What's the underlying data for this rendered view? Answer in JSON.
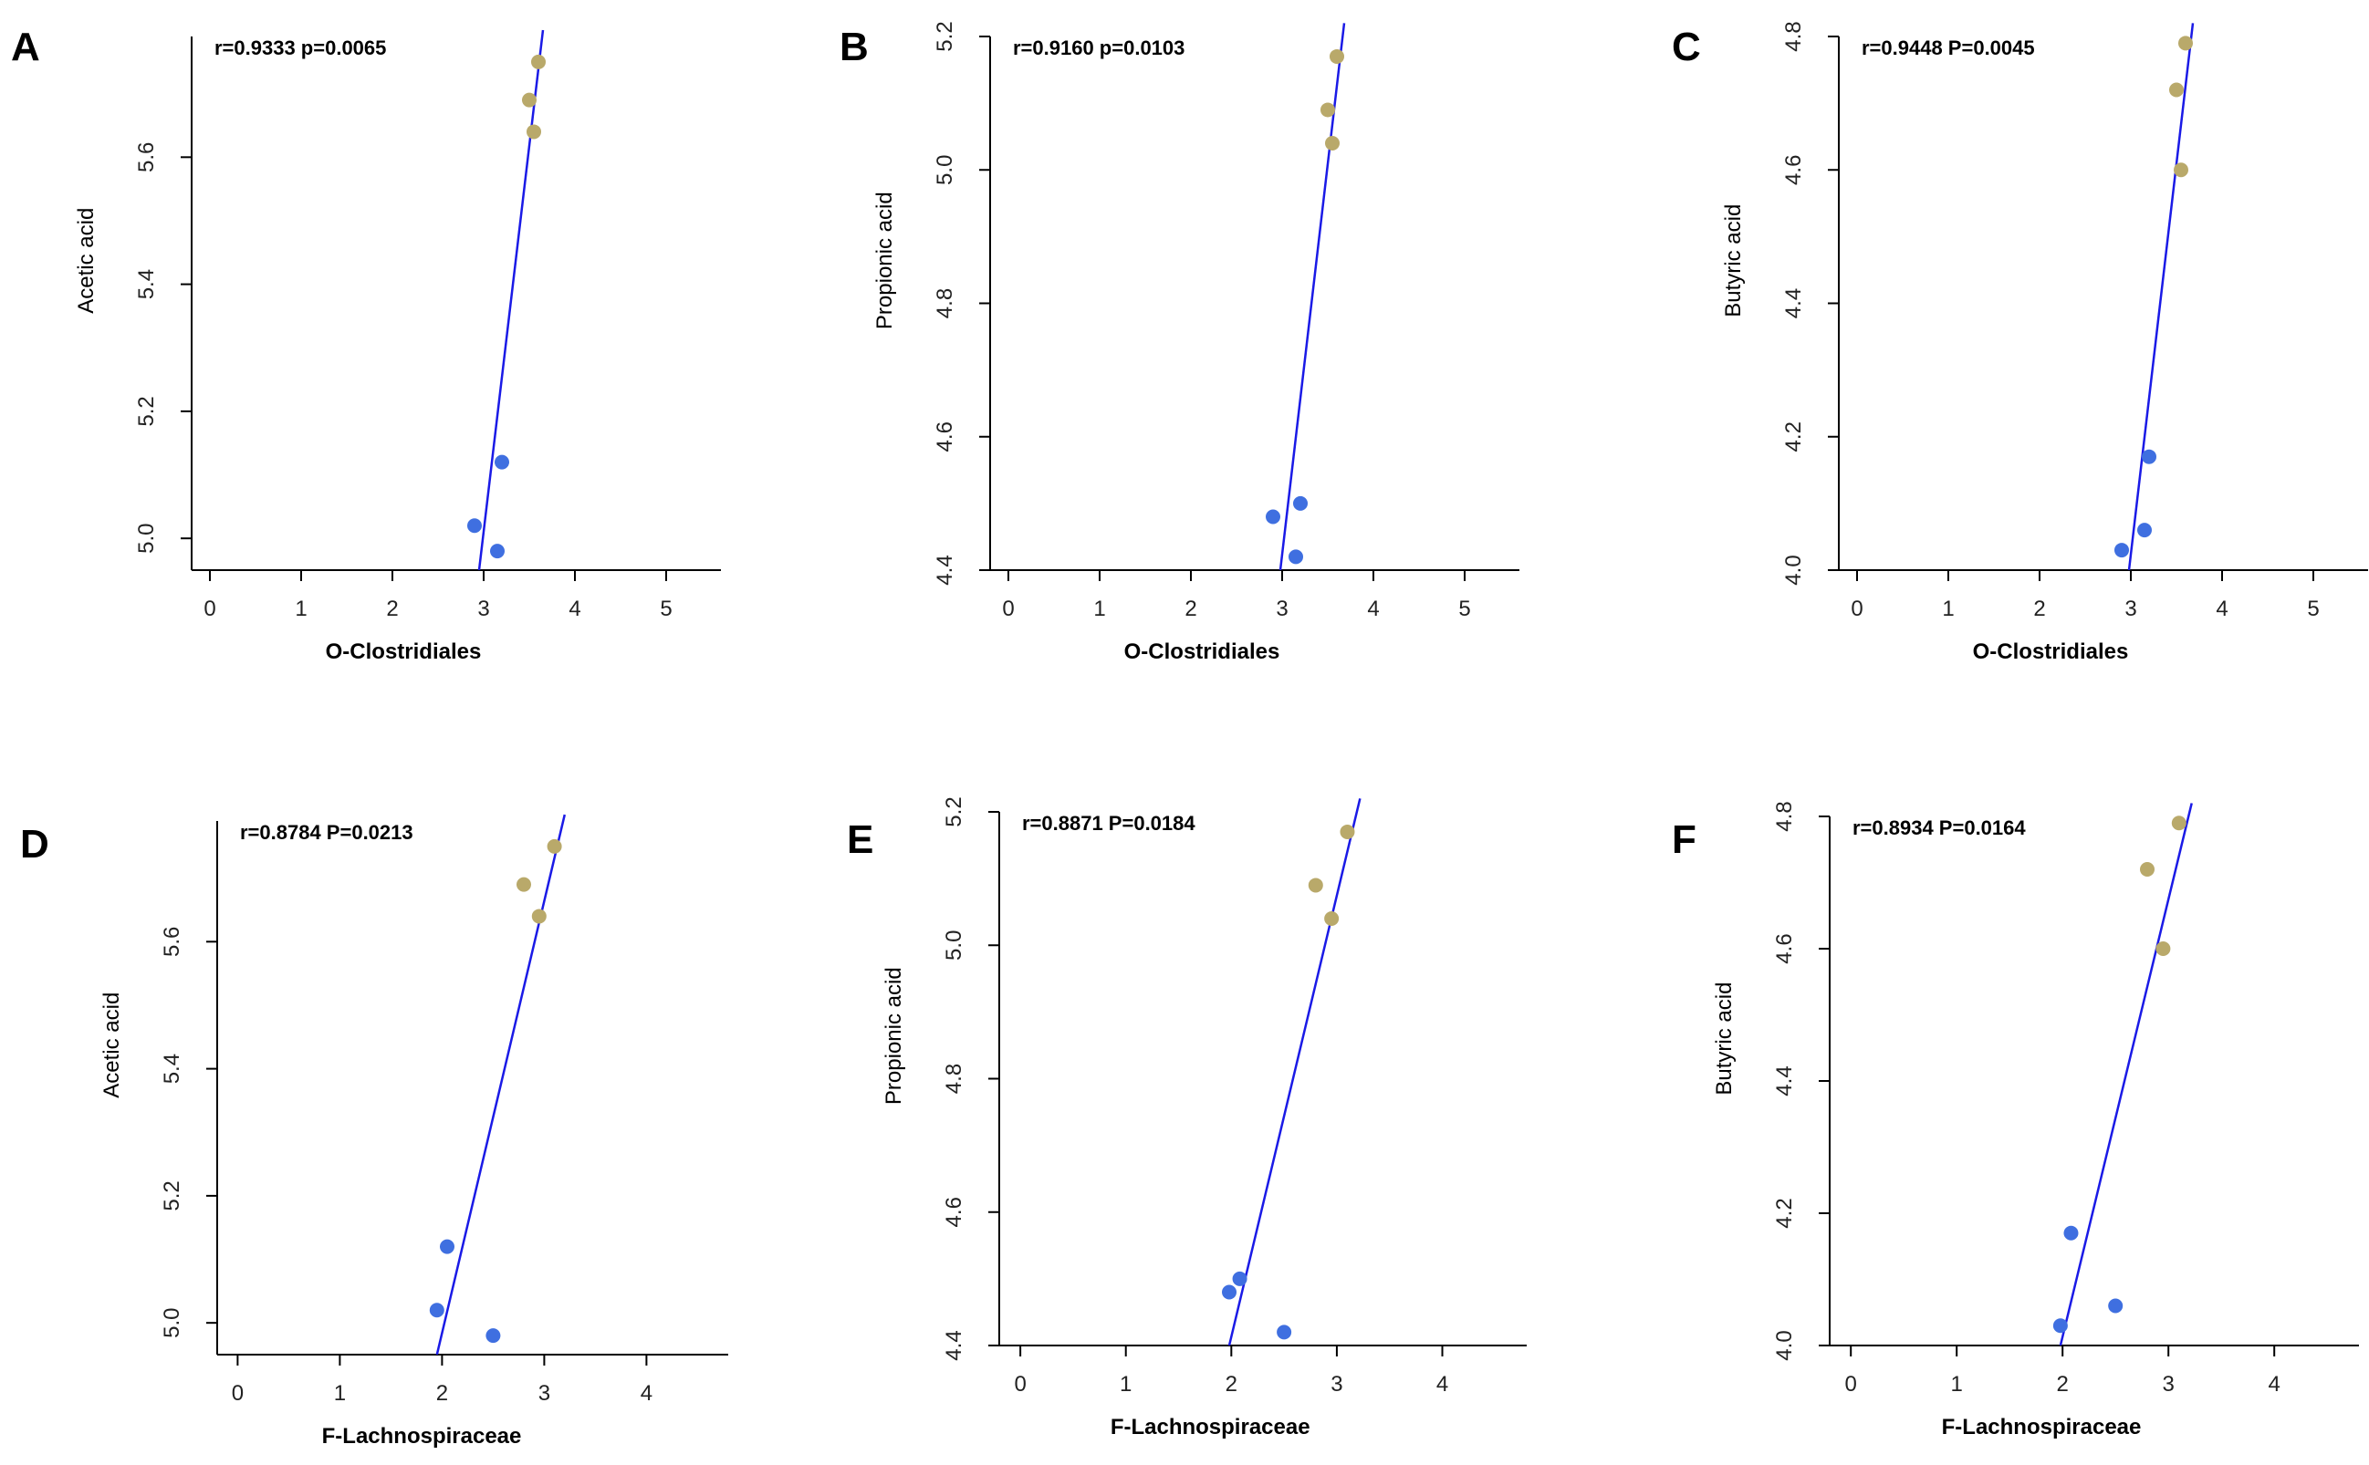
{
  "colors": {
    "line": "#1a1ae6",
    "group_low": "#3f6fe0",
    "group_high": "#b9a96a",
    "axis": "#000000"
  },
  "chart_data": [
    {
      "panel": "A",
      "type": "scatter",
      "annotation": "r=0.9333  p=0.0065",
      "xlabel": "O-Clostridiales",
      "ylabel": "Acetic acid",
      "xlim": [
        -0.2,
        5.6
      ],
      "ylim": [
        4.95,
        5.79
      ],
      "xticks": [
        0,
        1,
        2,
        3,
        4,
        5
      ],
      "yticks": [
        5.0,
        5.2,
        5.4,
        5.6
      ],
      "ytick_labels": [
        "5.0",
        "5.2",
        "5.4",
        "5.6"
      ],
      "points": [
        {
          "x": 2.9,
          "y": 5.02,
          "group": "low"
        },
        {
          "x": 3.2,
          "y": 5.12,
          "group": "low"
        },
        {
          "x": 3.15,
          "y": 4.98,
          "group": "low"
        },
        {
          "x": 3.5,
          "y": 5.69,
          "group": "high"
        },
        {
          "x": 3.55,
          "y": 5.64,
          "group": "high"
        },
        {
          "x": 3.6,
          "y": 5.75,
          "group": "high"
        }
      ],
      "fit": {
        "x1": 2.95,
        "y1": 4.95,
        "x2": 3.65,
        "y2": 5.8
      }
    },
    {
      "panel": "B",
      "type": "scatter",
      "annotation": "r=0.9160  p=0.0103",
      "xlabel": "O-Clostridiales",
      "ylabel": "Propionic acid",
      "xlim": [
        -0.2,
        5.6
      ],
      "ylim": [
        4.4,
        5.2
      ],
      "xticks": [
        0,
        1,
        2,
        3,
        4,
        5
      ],
      "yticks": [
        4.4,
        4.6,
        4.8,
        5.0,
        5.2
      ],
      "ytick_labels": [
        "4.4",
        "4.6",
        "4.8",
        "5.0",
        "5.2"
      ],
      "points": [
        {
          "x": 2.9,
          "y": 4.48,
          "group": "low"
        },
        {
          "x": 3.2,
          "y": 4.5,
          "group": "low"
        },
        {
          "x": 3.15,
          "y": 4.42,
          "group": "low"
        },
        {
          "x": 3.5,
          "y": 5.09,
          "group": "high"
        },
        {
          "x": 3.55,
          "y": 5.04,
          "group": "high"
        },
        {
          "x": 3.6,
          "y": 5.17,
          "group": "high"
        }
      ],
      "fit": {
        "x1": 2.98,
        "y1": 4.4,
        "x2": 3.68,
        "y2": 5.22
      }
    },
    {
      "panel": "C",
      "type": "scatter",
      "annotation": "r=0.9448 P=0.0045",
      "xlabel": "O-Clostridiales",
      "ylabel": "Butyric acid",
      "xlim": [
        -0.2,
        5.6
      ],
      "ylim": [
        4.0,
        4.8
      ],
      "xticks": [
        0,
        1,
        2,
        3,
        4,
        5
      ],
      "yticks": [
        4.0,
        4.2,
        4.4,
        4.6,
        4.8
      ],
      "ytick_labels": [
        "4.0",
        "4.2",
        "4.4",
        "4.6",
        "4.8"
      ],
      "points": [
        {
          "x": 2.9,
          "y": 4.03,
          "group": "low"
        },
        {
          "x": 3.2,
          "y": 4.17,
          "group": "low"
        },
        {
          "x": 3.15,
          "y": 4.06,
          "group": "low"
        },
        {
          "x": 3.5,
          "y": 4.72,
          "group": "high"
        },
        {
          "x": 3.55,
          "y": 4.6,
          "group": "high"
        },
        {
          "x": 3.6,
          "y": 4.79,
          "group": "high"
        }
      ],
      "fit": {
        "x1": 2.98,
        "y1": 4.0,
        "x2": 3.68,
        "y2": 4.82
      }
    },
    {
      "panel": "D",
      "type": "scatter",
      "annotation": "r=0.8784 P=0.0213",
      "xlabel": "F-Lachnospiraceae",
      "ylabel": "Acetic acid",
      "xlim": [
        -0.2,
        4.8
      ],
      "ylim": [
        4.95,
        5.79
      ],
      "xticks": [
        0,
        1,
        2,
        3,
        4
      ],
      "yticks": [
        5.0,
        5.2,
        5.4,
        5.6
      ],
      "ytick_labels": [
        "5.0",
        "5.2",
        "5.4",
        "5.6"
      ],
      "points": [
        {
          "x": 1.95,
          "y": 5.02,
          "group": "low"
        },
        {
          "x": 2.05,
          "y": 5.12,
          "group": "low"
        },
        {
          "x": 2.5,
          "y": 4.98,
          "group": "low"
        },
        {
          "x": 2.8,
          "y": 5.69,
          "group": "high"
        },
        {
          "x": 2.95,
          "y": 5.64,
          "group": "high"
        },
        {
          "x": 3.1,
          "y": 5.75,
          "group": "high"
        }
      ],
      "fit": {
        "x1": 1.95,
        "y1": 4.95,
        "x2": 3.2,
        "y2": 5.8
      }
    },
    {
      "panel": "E",
      "type": "scatter",
      "annotation": "r=0.8871 P=0.0184",
      "xlabel": "F-Lachnospiraceae",
      "ylabel": "Propionic acid",
      "xlim": [
        -0.2,
        4.8
      ],
      "ylim": [
        4.4,
        5.2
      ],
      "xticks": [
        0,
        1,
        2,
        3,
        4
      ],
      "yticks": [
        4.4,
        4.6,
        4.8,
        5.0,
        5.2
      ],
      "ytick_labels": [
        "4.4",
        "4.6",
        "4.8",
        "5.0",
        "5.2"
      ],
      "points": [
        {
          "x": 1.98,
          "y": 4.48,
          "group": "low"
        },
        {
          "x": 2.08,
          "y": 4.5,
          "group": "low"
        },
        {
          "x": 2.5,
          "y": 4.42,
          "group": "low"
        },
        {
          "x": 2.8,
          "y": 5.09,
          "group": "high"
        },
        {
          "x": 2.95,
          "y": 5.04,
          "group": "high"
        },
        {
          "x": 3.1,
          "y": 5.17,
          "group": "high"
        }
      ],
      "fit": {
        "x1": 1.98,
        "y1": 4.4,
        "x2": 3.22,
        "y2": 5.22
      }
    },
    {
      "panel": "F",
      "type": "scatter",
      "annotation": "r=0.8934 P=0.0164",
      "xlabel": "F-Lachnospiraceae",
      "ylabel": "Butyric acid",
      "xlim": [
        -0.2,
        4.8
      ],
      "ylim": [
        4.0,
        4.8
      ],
      "xticks": [
        0,
        1,
        2,
        3,
        4
      ],
      "yticks": [
        4.0,
        4.2,
        4.4,
        4.6,
        4.8
      ],
      "ytick_labels": [
        "4.0",
        "4.2",
        "4.4",
        "4.6",
        "4.8"
      ],
      "points": [
        {
          "x": 1.98,
          "y": 4.03,
          "group": "low"
        },
        {
          "x": 2.08,
          "y": 4.17,
          "group": "low"
        },
        {
          "x": 2.5,
          "y": 4.06,
          "group": "low"
        },
        {
          "x": 2.8,
          "y": 4.72,
          "group": "high"
        },
        {
          "x": 2.95,
          "y": 4.6,
          "group": "high"
        },
        {
          "x": 3.1,
          "y": 4.79,
          "group": "high"
        }
      ],
      "fit": {
        "x1": 1.98,
        "y1": 4.0,
        "x2": 3.22,
        "y2": 4.82
      }
    }
  ]
}
